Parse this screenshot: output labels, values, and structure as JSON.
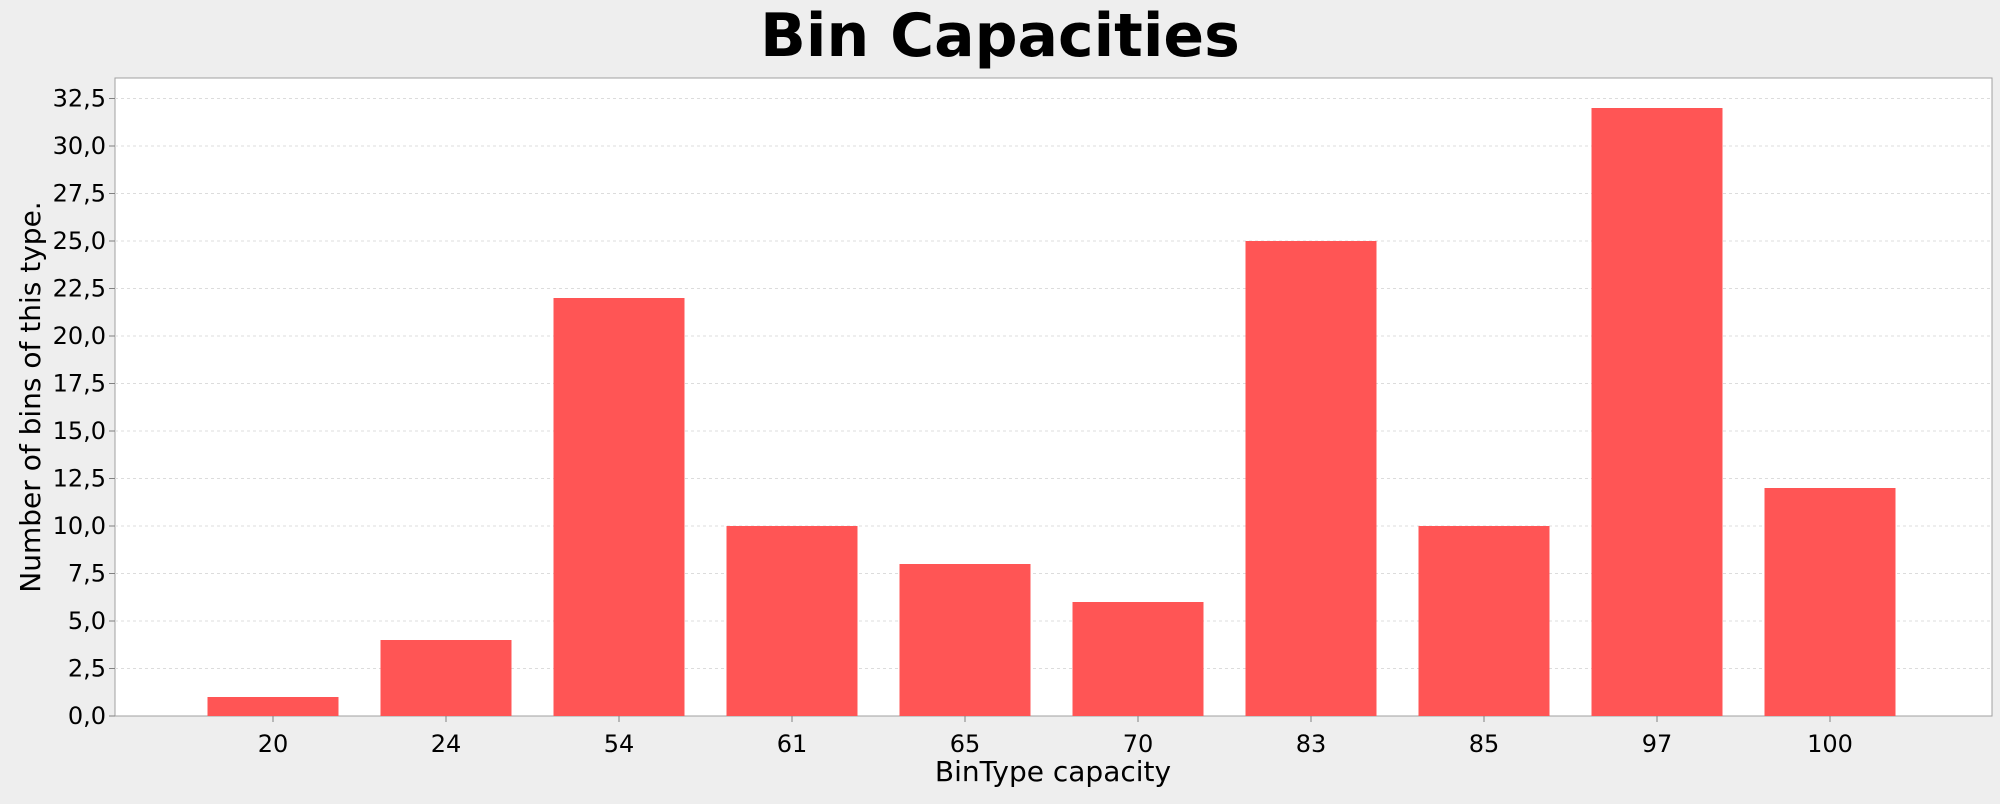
{
  "chart_data": {
    "type": "bar",
    "title": "Bin Capacities",
    "xlabel": "BinType capacity",
    "ylabel": "Number of bins of this type.",
    "categories": [
      "20",
      "24",
      "54",
      "61",
      "65",
      "70",
      "83",
      "85",
      "97",
      "100"
    ],
    "values": [
      1,
      4,
      22,
      10,
      8,
      6,
      25,
      10,
      32,
      12
    ],
    "ylim": [
      0,
      33.5
    ],
    "yticks": [
      0,
      2.5,
      5,
      7.5,
      10,
      12.5,
      15,
      17.5,
      20,
      22.5,
      25,
      27.5,
      30,
      32.5
    ],
    "ytick_labels": [
      "0,0",
      "2,5",
      "5,0",
      "7,5",
      "10,0",
      "12,5",
      "15,0",
      "17,5",
      "20,0",
      "22,5",
      "25,0",
      "27,5",
      "30,0",
      "32,5"
    ],
    "bar_color": "#ff5555",
    "background_color": "#eeeeee",
    "plot_background_color": "#ffffff",
    "grid": true,
    "legend": false
  }
}
